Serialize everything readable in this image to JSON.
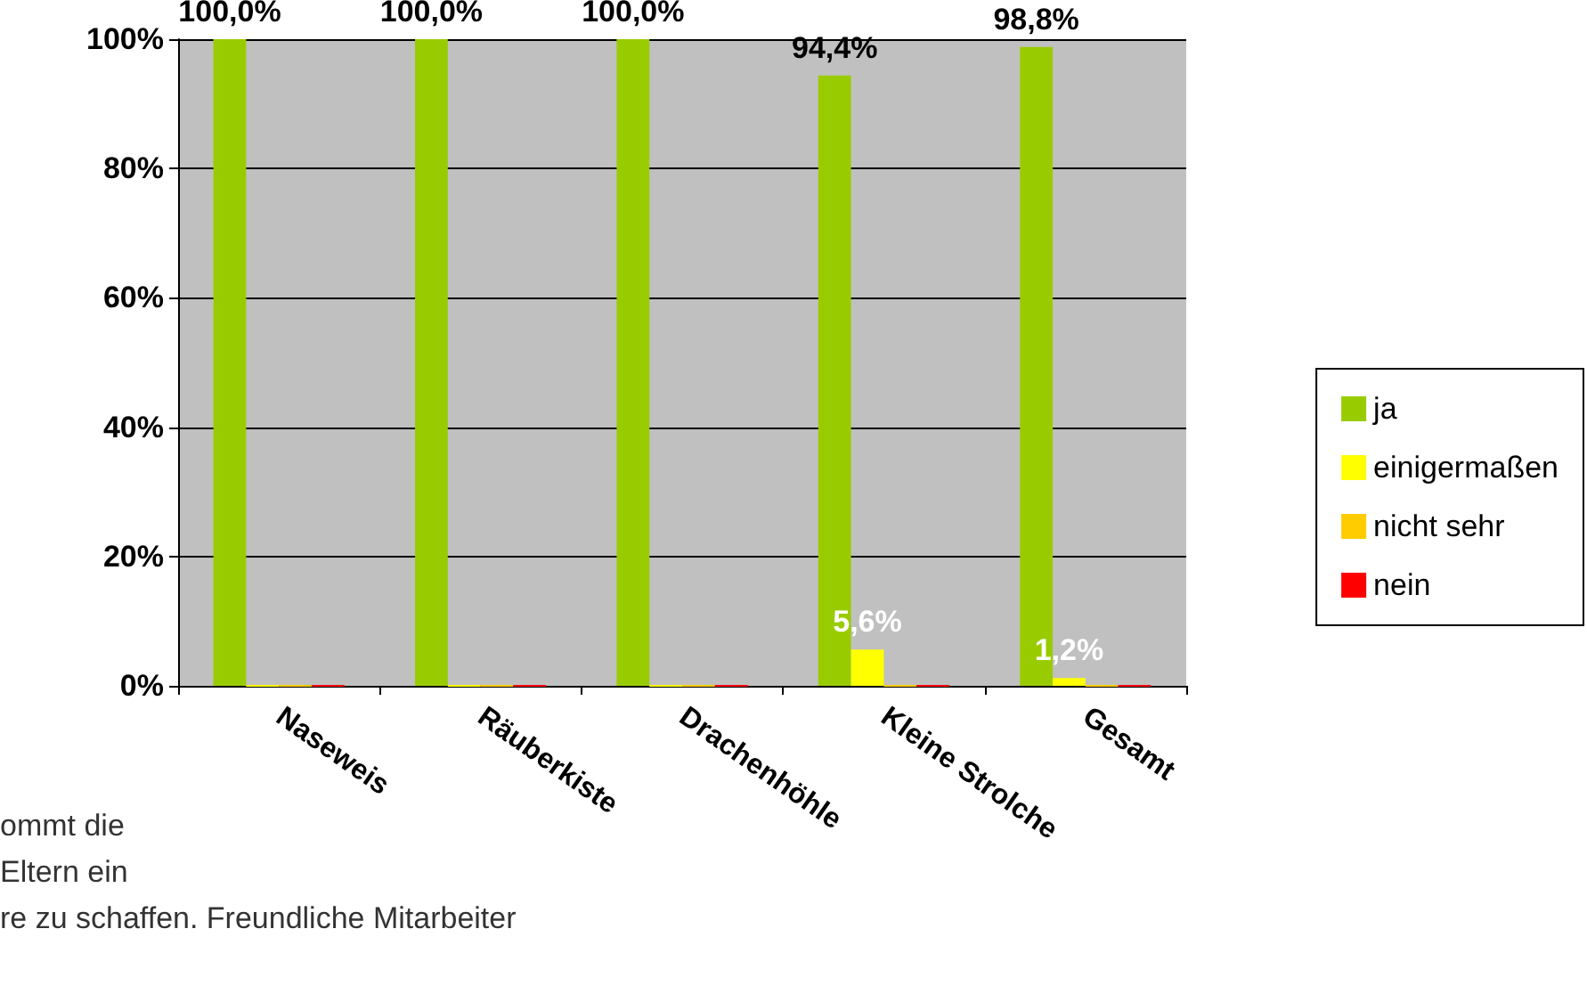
{
  "chart_data": {
    "type": "bar",
    "categories": [
      "Naseweis",
      "Räuberkiste",
      "Drachenhöhle",
      "Kleine Strolche",
      "Gesamt"
    ],
    "series": [
      {
        "name": "ja",
        "color": "#99cc00",
        "values": [
          100,
          100,
          100,
          94.4,
          98.8
        ],
        "value_labels": [
          "100,0%",
          "100,0%",
          "100,0%",
          "94,4%",
          "98,8%"
        ]
      },
      {
        "name": "einigermaßen",
        "color": "#ffff00",
        "values": [
          0,
          0,
          0,
          5.6,
          1.2
        ],
        "value_labels": [
          null,
          null,
          null,
          "5,6%",
          "1,2%"
        ]
      },
      {
        "name": "nicht sehr",
        "color": "#ffcc00",
        "values": [
          0,
          0,
          0,
          0,
          0
        ]
      },
      {
        "name": "nein",
        "color": "#ff0000",
        "values": [
          0,
          0,
          0,
          0,
          0
        ]
      }
    ],
    "ylim": [
      0,
      100
    ],
    "yticks": [
      {
        "value": 0,
        "label": "0%"
      },
      {
        "value": 20,
        "label": "20%"
      },
      {
        "value": 40,
        "label": "40%"
      },
      {
        "value": 60,
        "label": "60%"
      },
      {
        "value": 80,
        "label": "80%"
      },
      {
        "value": 100,
        "label": "100%"
      }
    ],
    "grid": "y",
    "legend": "right",
    "annotations": [
      "ommt die",
      "Eltern ein",
      "re zu schaffen. Freundliche Mitarbeiter"
    ]
  }
}
